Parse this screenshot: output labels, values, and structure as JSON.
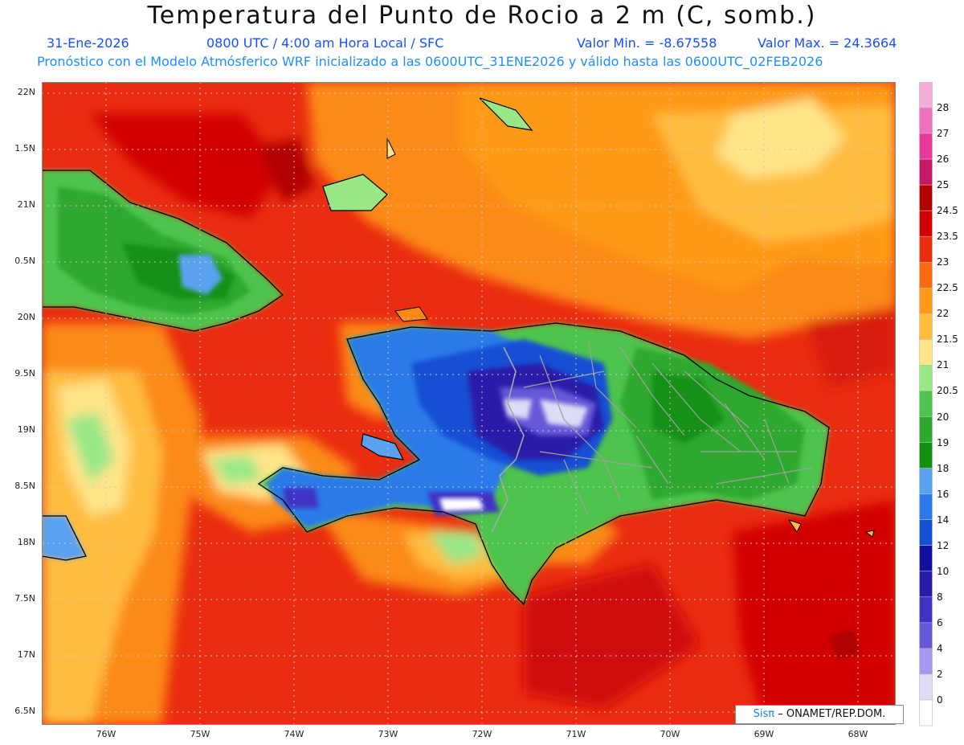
{
  "title": "Temperatura del Punto de Rocio a 2 m (C, somb.)",
  "subtitle": {
    "date": "31-Ene-2026",
    "time": "0800 UTC / 4:00 am Hora Local / SFC",
    "vmin": "Valor Min. = -8.67558",
    "vmax": "Valor Max. = 24.3664"
  },
  "subtitle2": "Pronóstico con el Modelo Atmósferico WRF inicializado a las 0600UTC_31ENE2026 y válido hasta las  0600UTC_02FEB2026",
  "lat_labels": [
    "22N",
    "1.5N",
    "21N",
    "0.5N",
    "20N",
    "9.5N",
    "19N",
    "8.5N",
    "18N",
    "7.5N",
    "17N",
    "6.5N"
  ],
  "lon_labels": [
    "76W",
    "75W",
    "74W",
    "73W",
    "72W",
    "71W",
    "70W",
    "69W",
    "68W"
  ],
  "credit": {
    "brand": "Sisπ",
    "text": "– ONAMET/REP.DOM."
  },
  "legend": [
    {
      "label": "28",
      "color": "#f2b0d6"
    },
    {
      "label": "27",
      "color": "#f070c0"
    },
    {
      "label": "26",
      "color": "#e8389a"
    },
    {
      "label": "25",
      "color": "#c41868"
    },
    {
      "label": "24.5",
      "color": "#b00000"
    },
    {
      "label": "23.5",
      "color": "#d20000"
    },
    {
      "label": "23",
      "color": "#ea2c10"
    },
    {
      "label": "22.5",
      "color": "#fb6a10"
    },
    {
      "label": "22",
      "color": "#ff9a18"
    },
    {
      "label": "21.5",
      "color": "#ffbd40"
    },
    {
      "label": "21",
      "color": "#ffe488"
    },
    {
      "label": "20.5",
      "color": "#98e888"
    },
    {
      "label": "20",
      "color": "#4ec44e"
    },
    {
      "label": "19",
      "color": "#2ea82e"
    },
    {
      "label": "18",
      "color": "#129012"
    },
    {
      "label": "16",
      "color": "#5aa2f0"
    },
    {
      "label": "14",
      "color": "#2a7ae8"
    },
    {
      "label": "12",
      "color": "#1450d4"
    },
    {
      "label": "10",
      "color": "#1010a0"
    },
    {
      "label": "8",
      "color": "#2a1aa8"
    },
    {
      "label": "6",
      "color": "#4030c4"
    },
    {
      "label": "4",
      "color": "#6658d8"
    },
    {
      "label": "2",
      "color": "#a598ee"
    },
    {
      "label": "0",
      "color": "#dcdcf6"
    },
    {
      "label": "",
      "color": "#ffffff"
    }
  ]
}
